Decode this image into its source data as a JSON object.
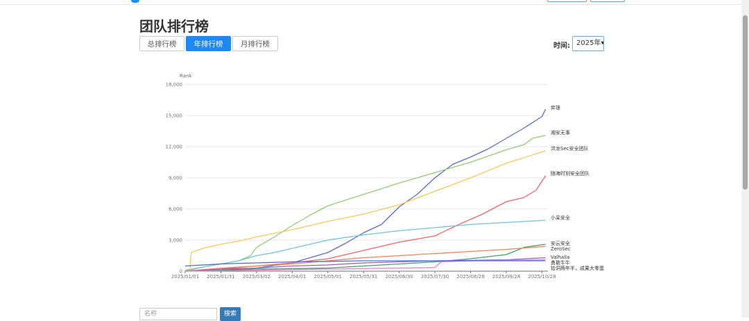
{
  "page": {
    "title": "团队排行榜",
    "tabs": [
      {
        "label": "总排行榜",
        "active": false
      },
      {
        "label": "年排行榜",
        "active": true
      },
      {
        "label": "月排行榜",
        "active": false
      }
    ],
    "time_label": "时间:",
    "time_select_value": "2025年▾"
  },
  "search": {
    "placeholder": "名称",
    "button_label": "搜索"
  },
  "colors": {
    "accent": "#1e87f0",
    "search_button": "#337ab7"
  },
  "chart_data": {
    "type": "line",
    "ylabel": "Rank",
    "ylim": [
      0,
      18000
    ],
    "yticks": [
      0,
      3000,
      6000,
      9000,
      12000,
      15000,
      18000
    ],
    "ytick_labels": [
      "0",
      "3,000",
      "6,000",
      "9,000",
      "12,000",
      "15,000",
      "18,000"
    ],
    "x_tick_labels": [
      "2025/01/01",
      "2025/01/31",
      "2025/03/02",
      "2025/04/01",
      "2025/05/01",
      "2025/05/31",
      "2025/06/30",
      "2025/07/30",
      "2025/08/29",
      "2025/09/28",
      "2025/10/28"
    ],
    "xlim": [
      0,
      305
    ],
    "grid": true,
    "legend": "line-end labels",
    "series": [
      {
        "name": "弈璟",
        "color": "#5470c6",
        "x": [
          0,
          30,
          60,
          90,
          120,
          135,
          150,
          165,
          180,
          195,
          210,
          225,
          240,
          255,
          270,
          285,
          300,
          303
        ],
        "y": [
          0,
          100,
          300,
          800,
          1800,
          2700,
          3700,
          4500,
          6200,
          7400,
          9000,
          10300,
          11000,
          11800,
          12800,
          13800,
          14900,
          15600
        ]
      },
      {
        "name": "湘安无事",
        "color": "#91cc75",
        "x": [
          0,
          30,
          45,
          55,
          60,
          75,
          90,
          105,
          120,
          150,
          180,
          210,
          240,
          270,
          285,
          292,
          303
        ],
        "y": [
          100,
          700,
          1000,
          1500,
          2300,
          3300,
          4400,
          5400,
          6300,
          7400,
          8500,
          9500,
          10500,
          11700,
          12200,
          12800,
          13100
        ]
      },
      {
        "name": "洪龙Sec安全团队",
        "color": "#fac858",
        "x": [
          0,
          4,
          5,
          15,
          30,
          45,
          60,
          90,
          120,
          150,
          180,
          210,
          240,
          270,
          303
        ],
        "y": [
          0,
          100,
          1800,
          2200,
          2600,
          2900,
          3300,
          4000,
          4800,
          5500,
          6400,
          7700,
          9000,
          10400,
          11600
        ]
      },
      {
        "name": "随海时刻安全团队",
        "color": "#ee6666",
        "x": [
          0,
          30,
          60,
          90,
          120,
          150,
          180,
          210,
          230,
          250,
          270,
          285,
          295,
          303
        ],
        "y": [
          0,
          200,
          500,
          800,
          1200,
          2000,
          2800,
          3400,
          4500,
          5500,
          6700,
          7100,
          7800,
          9200
        ]
      },
      {
        "name": "小呆安全",
        "color": "#73c0de",
        "x": [
          0,
          15,
          30,
          45,
          60,
          75,
          90,
          105,
          120,
          150,
          180,
          210,
          240,
          270,
          303
        ],
        "y": [
          0,
          400,
          700,
          1000,
          1500,
          1800,
          2200,
          2600,
          3000,
          3500,
          3900,
          4200,
          4500,
          4700,
          4900
        ]
      },
      {
        "name": "安云安全",
        "color": "#3ba272",
        "x": [
          0,
          30,
          60,
          90,
          120,
          150,
          180,
          210,
          240,
          270,
          285,
          303
        ],
        "y": [
          0,
          100,
          200,
          250,
          300,
          500,
          700,
          900,
          1200,
          1600,
          2300,
          2600
        ]
      },
      {
        "name": "ZeroSec",
        "color": "#fc8452",
        "x": [
          0,
          30,
          60,
          90,
          120,
          150,
          180,
          210,
          240,
          270,
          303
        ],
        "y": [
          0,
          300,
          500,
          700,
          1000,
          1300,
          1500,
          1700,
          1900,
          2100,
          2400
        ]
      },
      {
        "name": "Valhalla",
        "color": "#9a60b4",
        "x": [
          0,
          30,
          60,
          90,
          120,
          150,
          180,
          210,
          240,
          270,
          303
        ],
        "y": [
          0,
          200,
          300,
          500,
          600,
          800,
          900,
          1000,
          1050,
          1100,
          1300
        ]
      },
      {
        "name": "勇敢牛牛",
        "color": "#ea7ccc",
        "x": [
          0,
          60,
          120,
          180,
          210,
          215,
          240,
          270,
          303
        ],
        "y": [
          0,
          100,
          200,
          300,
          350,
          900,
          1000,
          1050,
          1100
        ]
      },
      {
        "name": "拾洞两年半，成果大零蛋",
        "color": "#4d6bd6",
        "x": [
          0,
          30,
          60,
          90,
          120,
          150,
          180,
          210,
          240,
          270,
          303
        ],
        "y": [
          500,
          700,
          800,
          900,
          950,
          1000,
          1000,
          1000,
          1000,
          1000,
          1000
        ]
      }
    ]
  }
}
